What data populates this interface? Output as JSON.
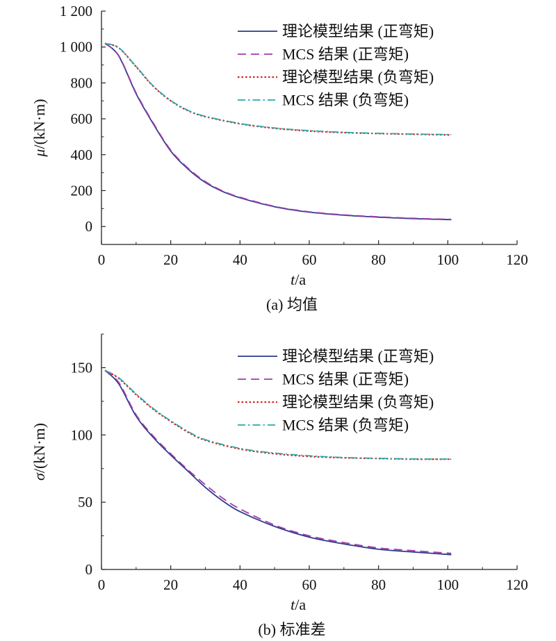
{
  "chart_data": [
    {
      "type": "line",
      "caption": "(a) 均值",
      "ylabel_symbol": "μ",
      "ylabel_unit": "/(kN·m)",
      "xlabel_symbol": "t",
      "xlabel_unit": "/a",
      "xlim": [
        0,
        120
      ],
      "ylim": [
        -100,
        1200
      ],
      "xticks": [
        0,
        20,
        40,
        60,
        80,
        100,
        120
      ],
      "yticks": [
        0,
        200,
        400,
        600,
        800,
        1000,
        1200
      ],
      "ytick_labels": [
        "0",
        "200",
        "400",
        "600",
        "800",
        "1 000",
        "1 200"
      ],
      "legend_position": "top-right",
      "series": [
        {
          "name": "理论模型结果 (正弯矩)",
          "color": "#2b3a8c",
          "style": "solid",
          "x": [
            1,
            5,
            10,
            15,
            20,
            25,
            30,
            35,
            40,
            50,
            60,
            70,
            80,
            90,
            101
          ],
          "y": [
            1020,
            950,
            740,
            570,
            420,
            320,
            245,
            195,
            160,
            110,
            80,
            63,
            52,
            44,
            38
          ]
        },
        {
          "name": "MCS 结果 (正弯矩)",
          "color": "#a23aa8",
          "style": "dashed",
          "x": [
            1,
            5,
            10,
            15,
            20,
            25,
            30,
            35,
            40,
            50,
            60,
            70,
            80,
            90,
            101
          ],
          "y": [
            1020,
            952,
            745,
            575,
            425,
            325,
            250,
            198,
            163,
            112,
            82,
            65,
            54,
            46,
            40
          ]
        },
        {
          "name": "理论模型结果 (负弯矩)",
          "color": "#d42020",
          "style": "dotted",
          "x": [
            1,
            5,
            10,
            15,
            20,
            25,
            30,
            40,
            50,
            60,
            70,
            80,
            90,
            101
          ],
          "y": [
            1020,
            995,
            890,
            780,
            700,
            645,
            612,
            572,
            547,
            532,
            523,
            518,
            514,
            510
          ]
        },
        {
          "name": "MCS 结果 (负弯矩)",
          "color": "#2aa8a8",
          "style": "dashdot",
          "x": [
            1,
            5,
            10,
            15,
            20,
            25,
            30,
            40,
            50,
            60,
            70,
            80,
            90,
            101
          ],
          "y": [
            1020,
            996,
            892,
            782,
            702,
            647,
            614,
            574,
            549,
            534,
            525,
            519,
            515,
            512
          ]
        }
      ]
    },
    {
      "type": "line",
      "caption": "(b) 标准差",
      "ylabel_symbol": "σ",
      "ylabel_unit": "/(kN·m)",
      "xlabel_symbol": "t",
      "xlabel_unit": "/a",
      "xlim": [
        0,
        120
      ],
      "ylim": [
        0,
        175
      ],
      "xticks": [
        0,
        20,
        40,
        60,
        80,
        100,
        120
      ],
      "yticks": [
        0,
        50,
        100,
        150
      ],
      "ytick_labels": [
        "0",
        "50",
        "100",
        "150"
      ],
      "legend_position": "top-right",
      "series": [
        {
          "name": "理论模型结果 (正弯矩)",
          "color": "#2b3a8c",
          "style": "solid",
          "x": [
            1,
            5,
            10,
            15,
            20,
            25,
            30,
            35,
            40,
            50,
            60,
            70,
            80,
            90,
            101
          ],
          "y": [
            148,
            138,
            114,
            98,
            85,
            73,
            61,
            51,
            43,
            32,
            24,
            19,
            15,
            13,
            11
          ]
        },
        {
          "name": "MCS 结果 (正弯矩)",
          "color": "#a23aa8",
          "style": "dashed",
          "x": [
            1,
            5,
            10,
            15,
            20,
            25,
            30,
            35,
            40,
            50,
            60,
            70,
            80,
            90,
            101
          ],
          "y": [
            148,
            139,
            115,
            99,
            86,
            74,
            63,
            53,
            45,
            33,
            25,
            20,
            16,
            14,
            12
          ]
        },
        {
          "name": "理论模型结果 (负弯矩)",
          "color": "#d42020",
          "style": "dotted",
          "x": [
            1,
            5,
            10,
            15,
            20,
            25,
            30,
            40,
            50,
            60,
            70,
            80,
            90,
            101
          ],
          "y": [
            148,
            142,
            130,
            119,
            110,
            102,
            96,
            89.5,
            86,
            84,
            83,
            82.5,
            82,
            82
          ]
        },
        {
          "name": "MCS 结果 (负弯矩)",
          "color": "#2aa8a8",
          "style": "dashdot",
          "x": [
            1,
            5,
            10,
            15,
            20,
            25,
            30,
            40,
            50,
            60,
            70,
            80,
            90,
            101
          ],
          "y": [
            148,
            142.5,
            130.5,
            119.5,
            110.5,
            102.5,
            96.5,
            90,
            86.5,
            84.5,
            83.2,
            82.6,
            82.2,
            82
          ]
        }
      ]
    }
  ]
}
